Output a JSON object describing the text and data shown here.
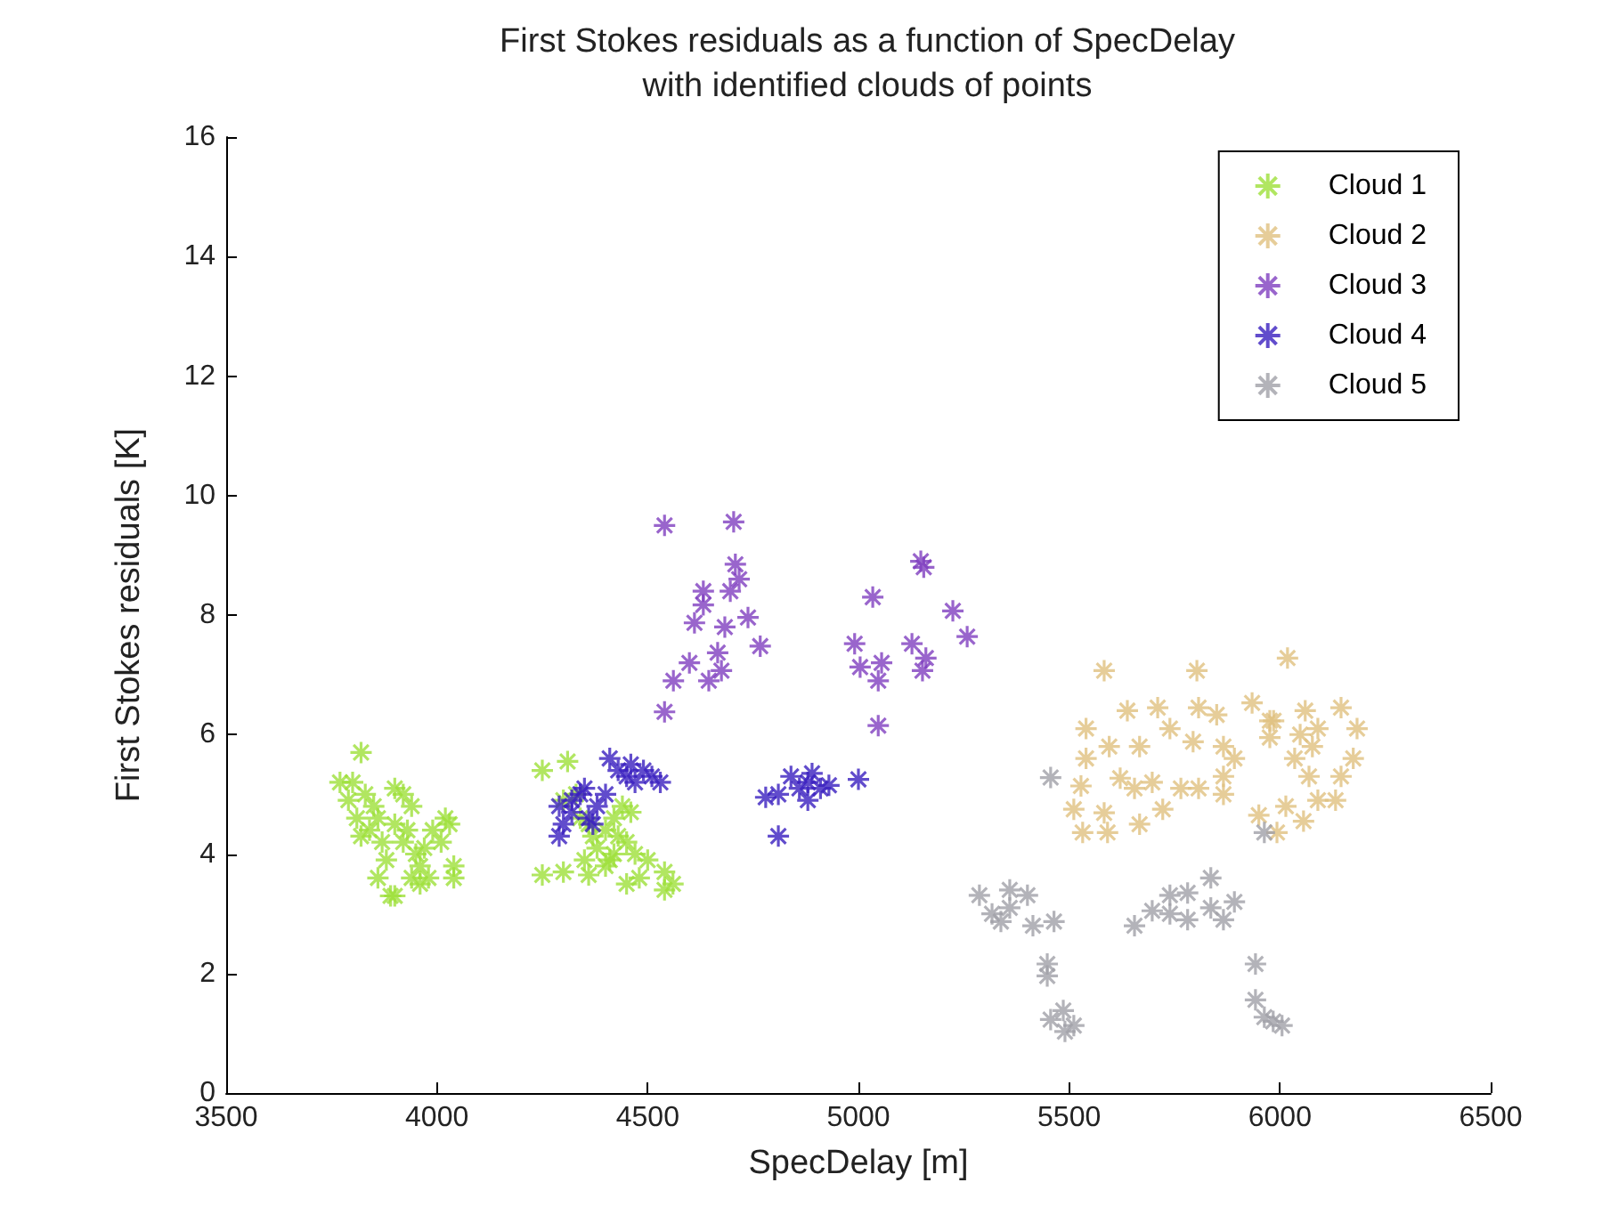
{
  "chart_data": {
    "type": "scatter",
    "title": "First Stokes residuals as a function of SpecDelay\nwith identified clouds of points",
    "xlabel": "SpecDelay [m]",
    "ylabel": "First Stokes residuals [K]",
    "xlim": [
      3500,
      6500
    ],
    "xticks": [
      3500,
      4000,
      4500,
      5000,
      5500,
      6000,
      6500
    ],
    "ylim": [
      0,
      16
    ],
    "yticks": [
      0,
      2,
      4,
      6,
      8,
      10,
      12,
      14,
      16
    ],
    "grid": false,
    "legend": "top right",
    "marker": "cross",
    "series": [
      {
        "name": "Cloud 1",
        "color": "#9ee03a",
        "x": [
          3820,
          3800,
          3790,
          3830,
          3810,
          3850,
          3840,
          3870,
          3900,
          3920,
          3940,
          3900,
          3880,
          3920,
          3950,
          3960,
          3990,
          4010,
          4030,
          3980,
          4040,
          4040,
          3900,
          3940,
          3860,
          3970,
          3930,
          3860,
          3820,
          3960,
          3770,
          3890,
          4020,
          4250,
          4310,
          4330,
          4300,
          4340,
          4370,
          4400,
          4420,
          4440,
          4460,
          4380,
          4420,
          4470,
          4500,
          4450,
          4350,
          4400,
          4480,
          4540,
          4540,
          4560,
          4250,
          4300,
          4360,
          4450,
          4410,
          4360,
          4430
        ],
        "values": [
          5.7,
          5.2,
          4.9,
          5.0,
          4.6,
          4.8,
          4.4,
          4.2,
          5.1,
          5.0,
          4.8,
          4.5,
          3.9,
          4.2,
          4.0,
          3.8,
          4.4,
          4.2,
          4.5,
          3.6,
          3.8,
          3.6,
          3.3,
          3.6,
          3.6,
          4.1,
          4.4,
          4.6,
          4.3,
          3.5,
          5.2,
          3.3,
          4.6,
          5.4,
          5.55,
          5.0,
          4.9,
          4.6,
          4.3,
          4.4,
          4.6,
          4.8,
          4.7,
          4.1,
          4.0,
          4.0,
          3.9,
          4.2,
          3.9,
          3.8,
          3.6,
          3.7,
          3.4,
          3.5,
          3.65,
          3.7,
          3.65,
          3.5,
          3.9,
          4.5,
          4.3
        ]
      },
      {
        "name": "Cloud 2",
        "color": "#e0c080",
        "x": [
          5583,
          5803,
          6018,
          5934,
          5976,
          5540,
          5638,
          5710,
          5807,
          5850,
          5667,
          5595,
          5540,
          5528,
          5511,
          5532,
          5591,
          5583,
          5667,
          5722,
          5655,
          5697,
          5621,
          5765,
          5807,
          5866,
          5866,
          5892,
          5866,
          5794,
          5739,
          6060,
          6145,
          6183,
          6048,
          6090,
          6035,
          6077,
          6174,
          6145,
          6090,
          6132,
          6069,
          6056,
          6014,
          5950,
          5993,
          5985,
          5976
        ],
        "values": [
          7.07,
          7.07,
          7.28,
          6.53,
          6.23,
          6.1,
          6.4,
          6.45,
          6.45,
          6.33,
          5.8,
          5.8,
          5.6,
          5.14,
          4.75,
          4.36,
          4.36,
          4.69,
          4.5,
          4.75,
          5.1,
          5.2,
          5.27,
          5.1,
          5.1,
          5.0,
          5.8,
          5.6,
          5.3,
          5.88,
          6.1,
          6.4,
          6.45,
          6.1,
          6.0,
          6.1,
          5.6,
          5.8,
          5.6,
          5.3,
          4.9,
          4.9,
          5.3,
          4.55,
          4.8,
          4.65,
          4.36,
          6.23,
          5.95
        ]
      },
      {
        "name": "Cloud 3",
        "color": "#7f3fbf",
        "x": [
          4540,
          4704,
          4708,
          4717,
          4632,
          4632,
          4696,
          4611,
          4738,
          4767,
          4666,
          4599,
          4561,
          4645,
          4675,
          4540,
          4683,
          5148,
          5155,
          5034,
          5224,
          5258,
          4991,
          5127,
          5160,
          5152,
          5004,
          5055,
          5047,
          5047
        ],
        "values": [
          9.5,
          9.56,
          8.85,
          8.6,
          8.4,
          8.17,
          8.4,
          7.87,
          7.96,
          7.48,
          7.37,
          7.2,
          6.9,
          6.9,
          7.07,
          6.38,
          7.8,
          8.9,
          8.8,
          8.3,
          8.07,
          7.64,
          7.52,
          7.52,
          7.28,
          7.07,
          7.13,
          7.2,
          6.9,
          6.15
        ]
      },
      {
        "name": "Cloud 4",
        "color": "#3a1fbf",
        "x": [
          4290,
          4300,
          4290,
          4320,
          4340,
          4350,
          4360,
          4380,
          4400,
          4410,
          4430,
          4450,
          4470,
          4490,
          4510,
          4530,
          4460,
          4320,
          4370,
          4780,
          4810,
          4840,
          4860,
          4880,
          4890,
          4910,
          4930,
          5000,
          4810,
          4880
        ],
        "values": [
          4.8,
          4.5,
          4.3,
          4.7,
          5.0,
          5.1,
          4.6,
          4.8,
          5.0,
          5.6,
          5.4,
          5.3,
          5.2,
          5.4,
          5.3,
          5.2,
          5.5,
          4.9,
          4.5,
          4.95,
          5.0,
          5.3,
          5.1,
          4.9,
          5.35,
          5.1,
          5.15,
          5.25,
          4.3,
          5.2
        ]
      },
      {
        "name": "Cloud 5",
        "color": "#a0a0a8",
        "x": [
          5287,
          5359,
          5401,
          5317,
          5359,
          5414,
          5464,
          5448,
          5448,
          5486,
          5456,
          5490,
          5511,
          5338,
          5655,
          5697,
          5739,
          5781,
          5836,
          5781,
          5836,
          5892,
          5866,
          5739,
          5942,
          5942,
          5963,
          6005,
          5984,
          5456,
          5963
        ],
        "values": [
          3.31,
          3.4,
          3.31,
          3.0,
          3.1,
          2.8,
          2.87,
          2.16,
          1.96,
          1.38,
          1.23,
          1.03,
          1.13,
          2.87,
          2.8,
          3.05,
          3.31,
          3.35,
          3.6,
          2.9,
          3.1,
          3.2,
          2.9,
          3.0,
          2.16,
          1.56,
          1.27,
          1.13,
          1.2,
          5.28,
          4.36
        ]
      }
    ]
  }
}
